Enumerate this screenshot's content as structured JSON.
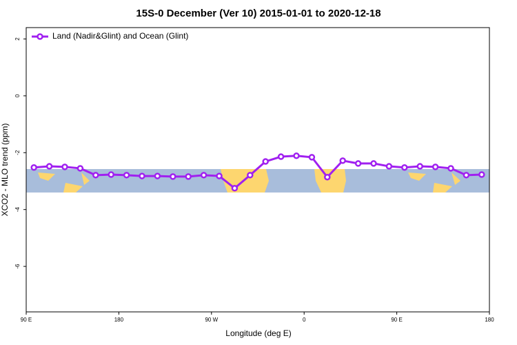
{
  "chart_data": {
    "type": "line",
    "title": "15S-0 December (Ver 10)   2015-01-01 to 2020-12-18",
    "x_label": "Longitude (deg E)",
    "y_label": "XCO2 - MLO trend (ppm)",
    "x": [
      97.5,
      112.5,
      127.5,
      142.5,
      157.5,
      172.5,
      187.5,
      202.5,
      217.5,
      232.5,
      247.5,
      262.5,
      277.5,
      292.5,
      307.5,
      322.5,
      337.5,
      352.5,
      367.5,
      382.5,
      397.5,
      412.5,
      427.5,
      442.5,
      457.5,
      472.5,
      487.5,
      502.5,
      517.5,
      532.5
    ],
    "series": [
      {
        "name": "Land (Nadir&Glint) and Ocean (Glint)",
        "color": "#a020f0",
        "values": [
          -2.52,
          -2.48,
          -2.5,
          -2.55,
          -2.79,
          -2.77,
          -2.79,
          -2.82,
          -2.82,
          -2.84,
          -2.84,
          -2.79,
          -2.82,
          -3.25,
          -2.79,
          -2.31,
          -2.14,
          -2.11,
          -2.16,
          -2.86,
          -2.28,
          -2.38,
          -2.38,
          -2.48,
          -2.52,
          -2.48,
          -2.5,
          -2.55,
          -2.79,
          -2.77
        ]
      }
    ],
    "xlim": [
      90,
      540
    ],
    "xticks": [
      {
        "value": 90,
        "label": "90 E"
      },
      180,
      {
        "value": 270,
        "label": "90 W"
      },
      {
        "value": 360,
        "label": "0"
      },
      {
        "value": 450,
        "label": "90 E"
      },
      {
        "value": 540,
        "label": "180"
      }
    ],
    "ylim": [
      -7.6,
      2.4
    ],
    "yticks": [
      2,
      0,
      -2,
      -4,
      -6
    ],
    "legend": "top-left"
  }
}
